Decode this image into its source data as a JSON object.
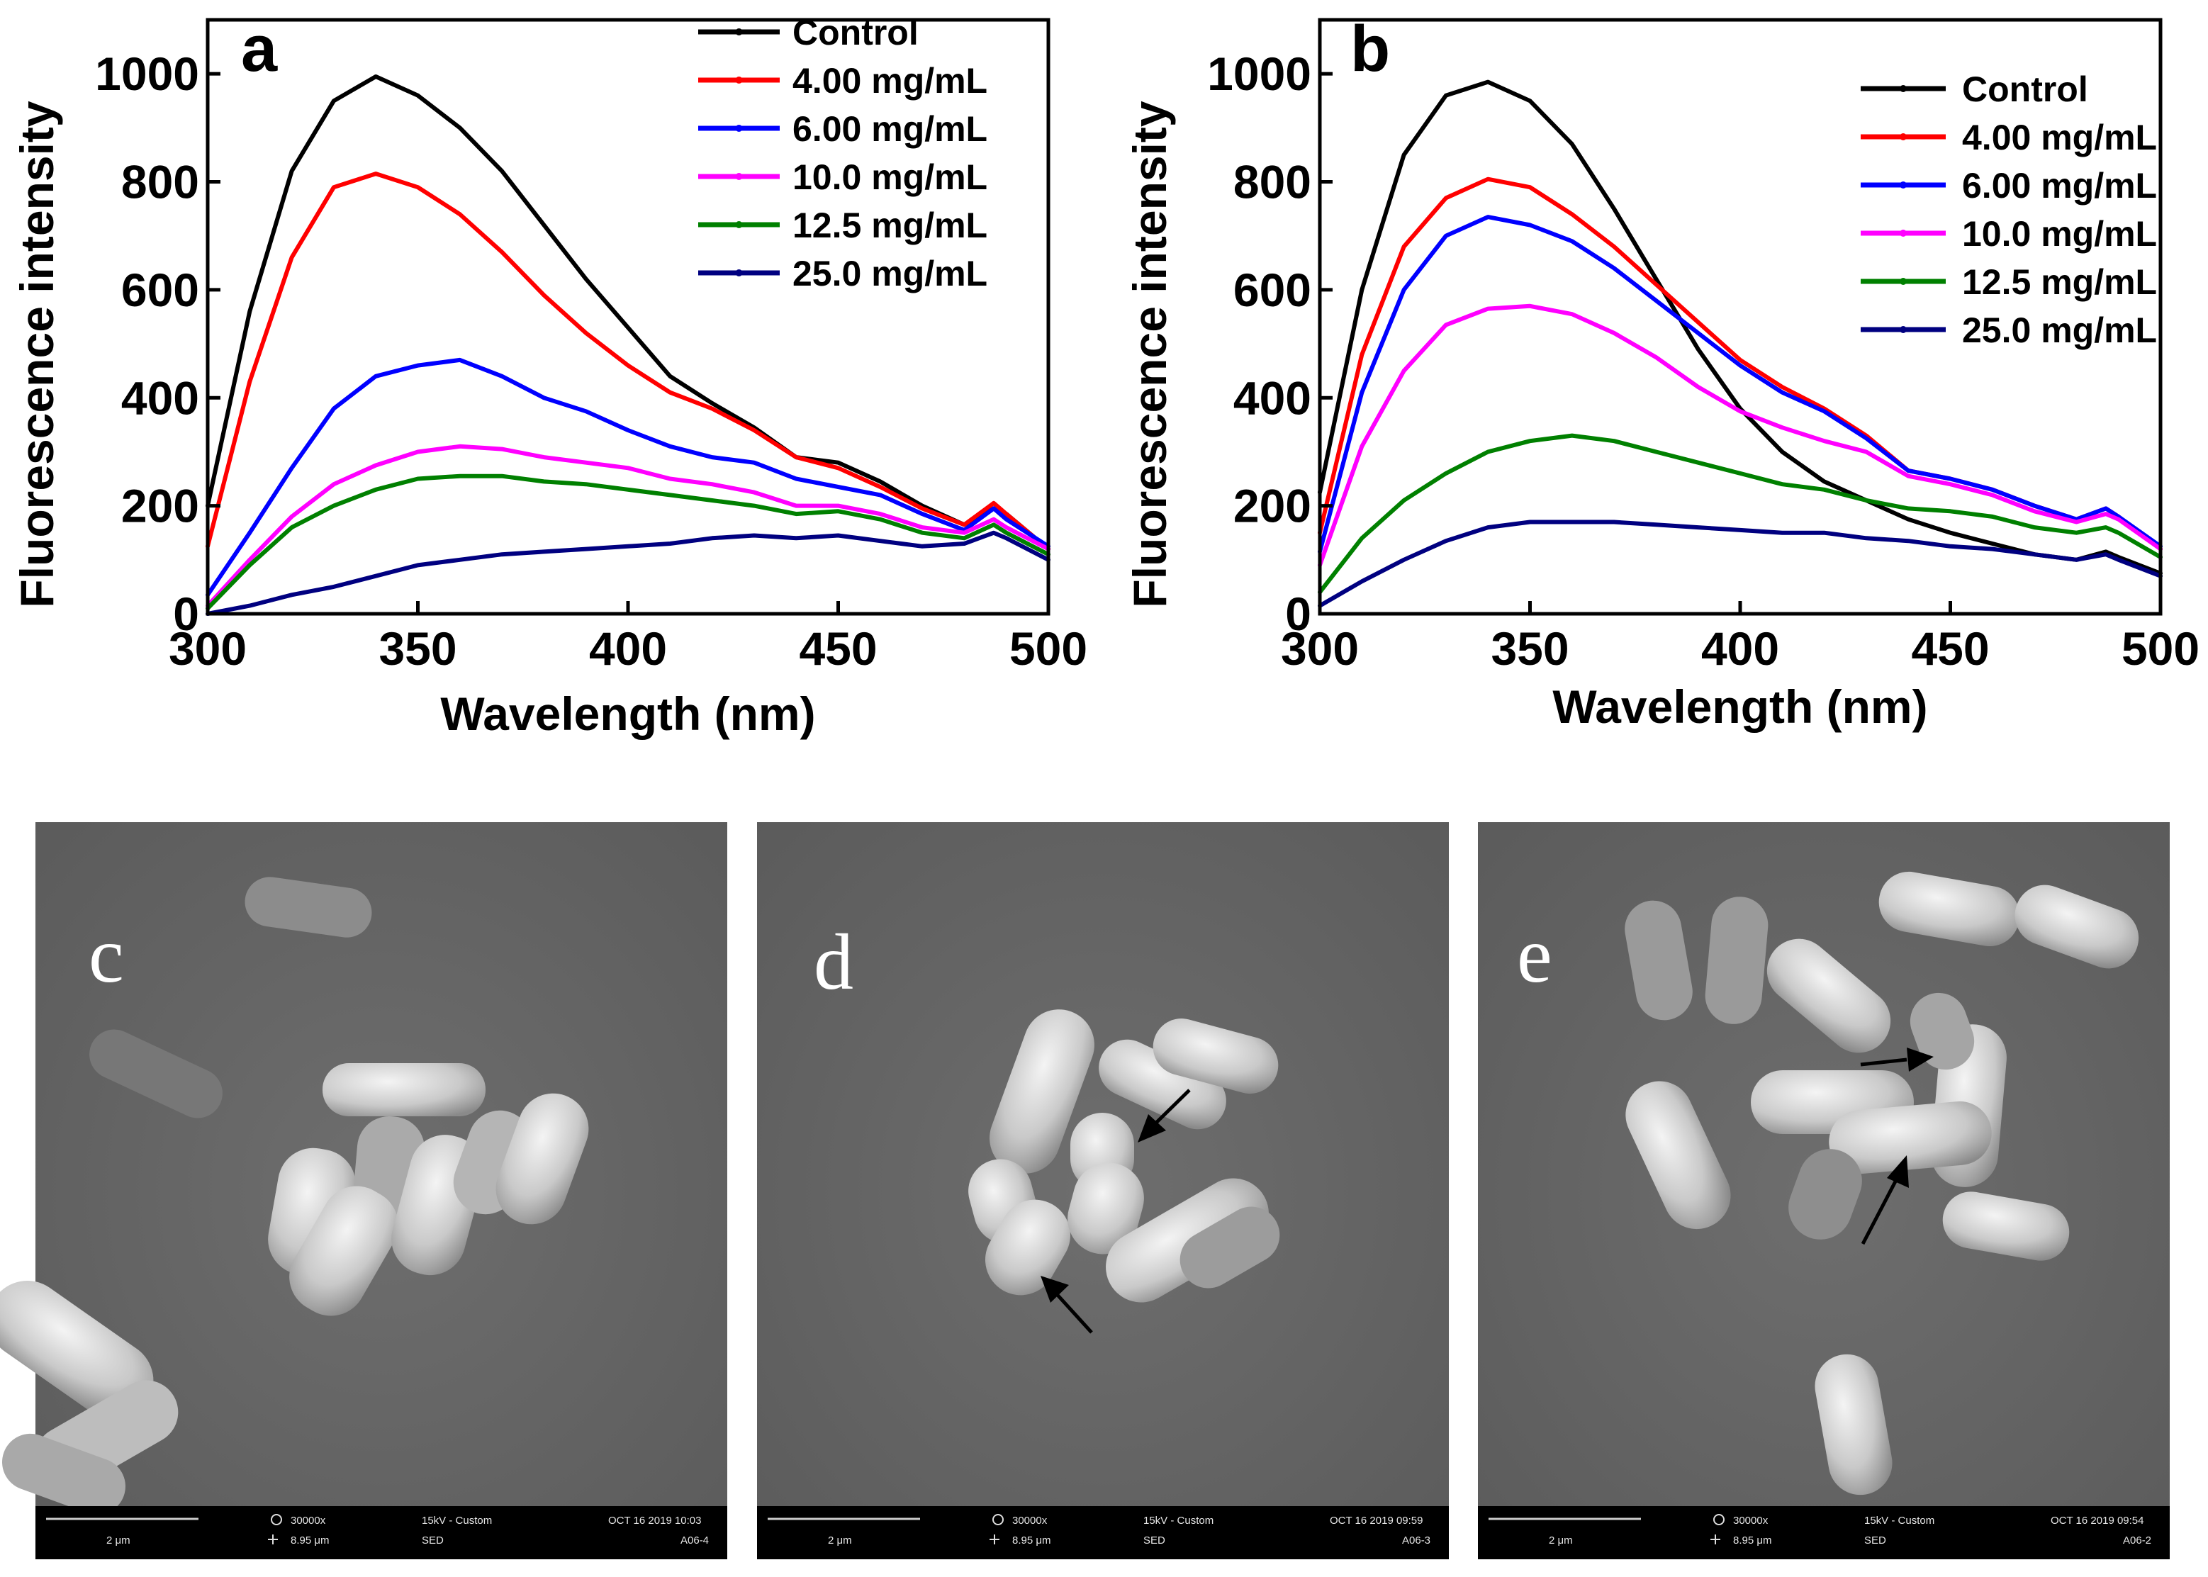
{
  "chart_data": [
    {
      "type": "line",
      "panel_label": "a",
      "xlabel": "Wavelength (nm)",
      "ylabel": "Fluorescence intensity",
      "xlim": [
        300,
        500
      ],
      "ylim": [
        0,
        1100
      ],
      "xticks": [
        300,
        350,
        400,
        450,
        500
      ],
      "yticks": [
        0,
        200,
        400,
        600,
        800,
        1000
      ],
      "legend_position": "top-right",
      "x": [
        300,
        310,
        320,
        330,
        340,
        350,
        360,
        370,
        380,
        390,
        400,
        410,
        420,
        430,
        440,
        450,
        460,
        470,
        480,
        487,
        490,
        500
      ],
      "series": [
        {
          "name": "Control",
          "color": "#000000",
          "values": [
            200,
            560,
            820,
            950,
            995,
            960,
            900,
            820,
            720,
            620,
            530,
            440,
            390,
            345,
            290,
            280,
            245,
            200,
            165,
            195,
            185,
            120
          ]
        },
        {
          "name": "4.00 mg/mL",
          "color": "#ff0000",
          "values": [
            125,
            430,
            660,
            790,
            815,
            790,
            740,
            670,
            590,
            520,
            460,
            410,
            380,
            340,
            290,
            270,
            235,
            195,
            165,
            205,
            185,
            120
          ]
        },
        {
          "name": "6.00 mg/mL",
          "color": "#0000ff",
          "values": [
            35,
            150,
            270,
            380,
            440,
            460,
            470,
            440,
            400,
            375,
            340,
            310,
            290,
            280,
            250,
            235,
            220,
            185,
            155,
            195,
            175,
            125
          ]
        },
        {
          "name": "10.0 mg/mL",
          "color": "#ff00ff",
          "values": [
            15,
            100,
            180,
            240,
            275,
            300,
            310,
            305,
            290,
            280,
            270,
            250,
            240,
            225,
            200,
            200,
            185,
            160,
            150,
            175,
            160,
            120
          ]
        },
        {
          "name": "12.5 mg/mL",
          "color": "#008000",
          "values": [
            10,
            90,
            160,
            200,
            230,
            250,
            255,
            255,
            245,
            240,
            230,
            220,
            210,
            200,
            185,
            190,
            175,
            150,
            140,
            165,
            150,
            110
          ]
        },
        {
          "name": "25.0 mg/mL",
          "color": "#000080",
          "values": [
            0,
            15,
            35,
            50,
            70,
            90,
            100,
            110,
            115,
            120,
            125,
            130,
            140,
            145,
            140,
            145,
            135,
            125,
            130,
            150,
            140,
            100
          ]
        }
      ]
    },
    {
      "type": "line",
      "panel_label": "b",
      "xlabel": "Wavelength (nm)",
      "ylabel": "Fluorescence intensity",
      "xlim": [
        300,
        500
      ],
      "ylim": [
        0,
        1100
      ],
      "xticks": [
        300,
        350,
        400,
        450,
        500
      ],
      "yticks": [
        0,
        200,
        400,
        600,
        800,
        1000
      ],
      "legend_position": "top-right",
      "x": [
        300,
        310,
        320,
        330,
        340,
        350,
        360,
        370,
        380,
        390,
        400,
        410,
        420,
        430,
        440,
        450,
        460,
        470,
        480,
        487,
        490,
        500
      ],
      "series": [
        {
          "name": "Control",
          "color": "#000000",
          "values": [
            225,
            600,
            850,
            960,
            985,
            950,
            870,
            750,
            620,
            490,
            380,
            300,
            245,
            210,
            175,
            150,
            130,
            110,
            100,
            115,
            105,
            75
          ]
        },
        {
          "name": "4.00 mg/mL",
          "color": "#ff0000",
          "values": [
            150,
            480,
            680,
            770,
            805,
            790,
            740,
            680,
            610,
            540,
            470,
            420,
            380,
            330,
            265,
            250,
            230,
            200,
            175,
            195,
            180,
            120
          ]
        },
        {
          "name": "6.00 mg/mL",
          "color": "#0000ff",
          "values": [
            115,
            410,
            600,
            700,
            735,
            720,
            690,
            640,
            580,
            520,
            460,
            410,
            375,
            325,
            265,
            250,
            230,
            200,
            175,
            195,
            180,
            125
          ]
        },
        {
          "name": "10.0 mg/mL",
          "color": "#ff00ff",
          "values": [
            90,
            310,
            450,
            535,
            565,
            570,
            555,
            520,
            475,
            420,
            375,
            345,
            320,
            300,
            255,
            240,
            220,
            190,
            170,
            185,
            175,
            120
          ]
        },
        {
          "name": "12.5 mg/mL",
          "color": "#008000",
          "values": [
            40,
            140,
            210,
            260,
            300,
            320,
            330,
            320,
            300,
            280,
            260,
            240,
            230,
            210,
            195,
            190,
            180,
            160,
            150,
            160,
            150,
            105
          ]
        },
        {
          "name": "25.0 mg/mL",
          "color": "#000080",
          "values": [
            15,
            60,
            100,
            135,
            160,
            170,
            170,
            170,
            165,
            160,
            155,
            150,
            150,
            140,
            135,
            125,
            120,
            110,
            100,
            110,
            100,
            70
          ]
        }
      ]
    }
  ],
  "sem_images": [
    {
      "letter": "c",
      "bar": {
        "scale": "2 μm",
        "mag": "30000x",
        "hfw": "8.95 μm",
        "hv": "15kV - Custom",
        "det": "SED",
        "date": "OCT 16 2019 10:03",
        "id": "A06-4"
      }
    },
    {
      "letter": "d",
      "bar": {
        "scale": "2 μm",
        "mag": "30000x",
        "hfw": "8.95 μm",
        "hv": "15kV - Custom",
        "det": "SED",
        "date": "OCT 16 2019 09:59",
        "id": "A06-3"
      }
    },
    {
      "letter": "e",
      "bar": {
        "scale": "2 μm",
        "mag": "30000x",
        "hfw": "8.95 μm",
        "hv": "15kV - Custom",
        "det": "SED",
        "date": "OCT 16 2019 09:54",
        "id": "A06-2"
      }
    }
  ]
}
